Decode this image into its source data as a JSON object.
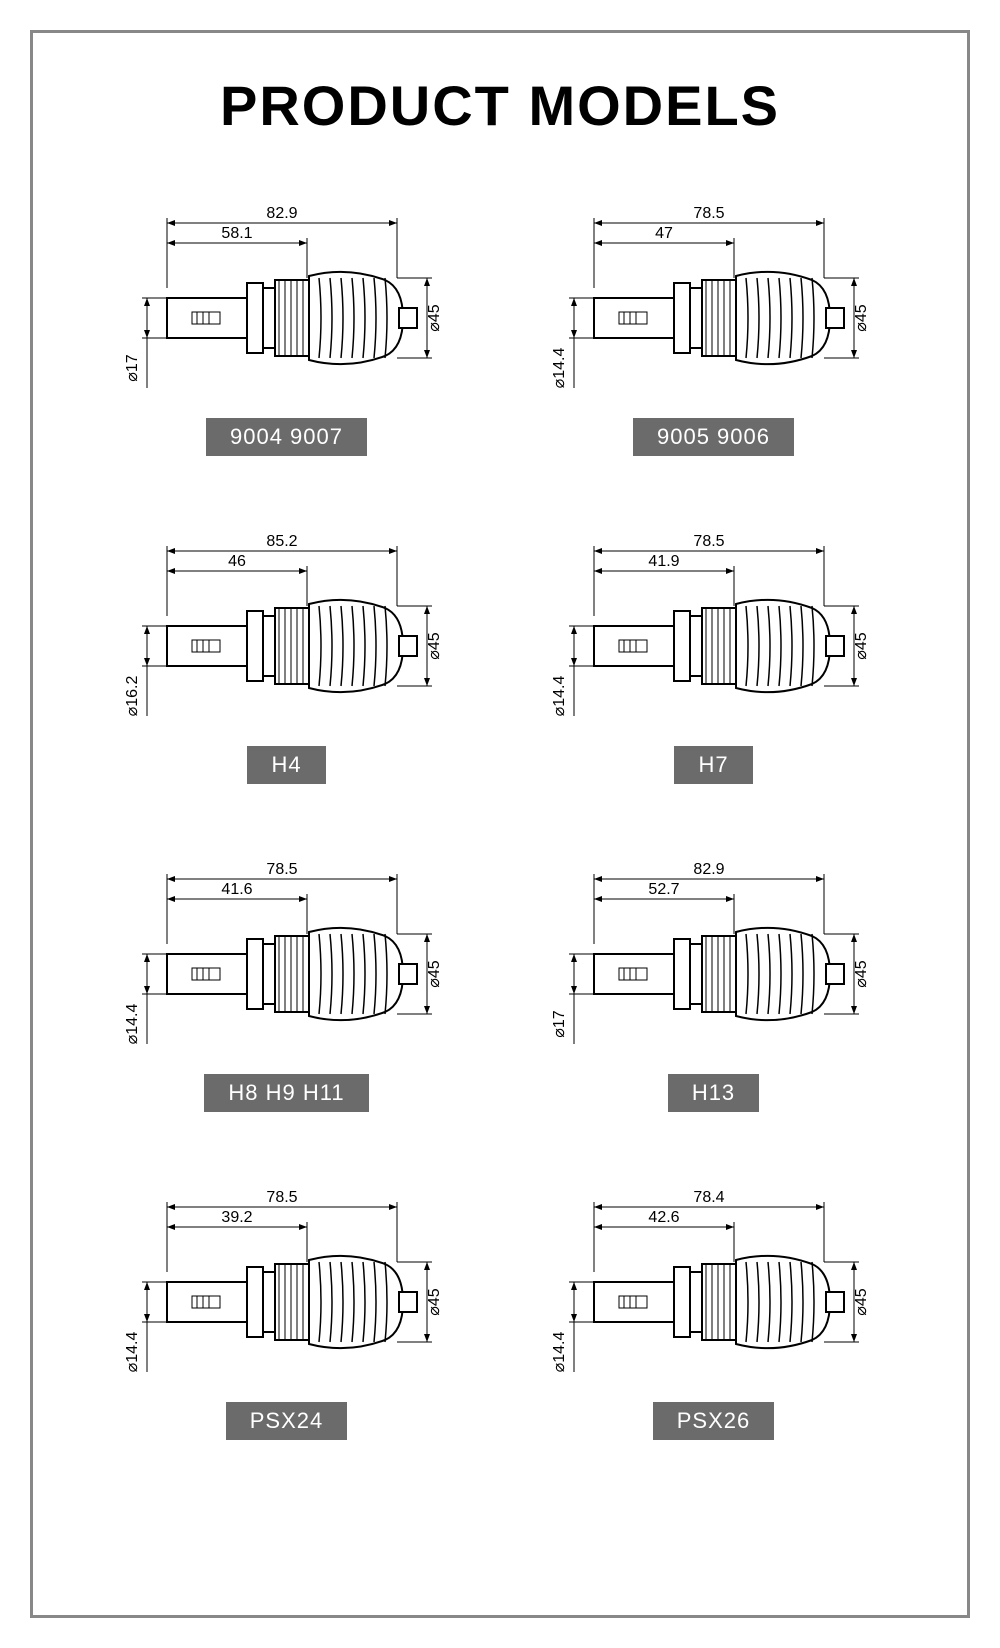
{
  "title": "PRODUCT MODELS",
  "title_fontsize": 56,
  "label_bg": "#6b6b6b",
  "label_color": "#ffffff",
  "stroke": "#000000",
  "frame_border": "#888888",
  "models": [
    {
      "label": "9004 9007",
      "dim_total": "82.9",
      "dim_mid": "58.1",
      "dim_left": "⌀17",
      "dim_right": "⌀45"
    },
    {
      "label": "9005 9006",
      "dim_total": "78.5",
      "dim_mid": "47",
      "dim_left": "⌀14.4",
      "dim_right": "⌀45"
    },
    {
      "label": "H4",
      "dim_total": "85.2",
      "dim_mid": "46",
      "dim_left": "⌀16.2",
      "dim_right": "⌀45"
    },
    {
      "label": "H7",
      "dim_total": "78.5",
      "dim_mid": "41.9",
      "dim_left": "⌀14.4",
      "dim_right": "⌀45"
    },
    {
      "label": "H8 H9 H11",
      "dim_total": "78.5",
      "dim_mid": "41.6",
      "dim_left": "⌀14.4",
      "dim_right": "⌀45"
    },
    {
      "label": "H13",
      "dim_total": "82.9",
      "dim_mid": "52.7",
      "dim_left": "⌀17",
      "dim_right": "⌀45"
    },
    {
      "label": "PSX24",
      "dim_total": "78.5",
      "dim_mid": "39.2",
      "dim_left": "⌀14.4",
      "dim_right": "⌀45"
    },
    {
      "label": "PSX26",
      "dim_total": "78.4",
      "dim_mid": "42.6",
      "dim_left": "⌀14.4",
      "dim_right": "⌀45"
    }
  ]
}
